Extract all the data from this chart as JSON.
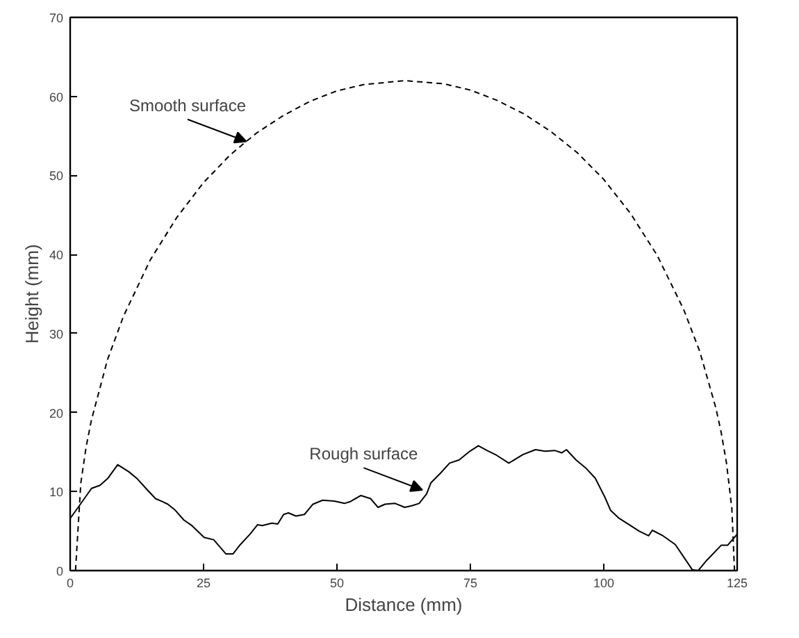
{
  "chart_data": {
    "type": "line",
    "xlabel": "Distance (mm)",
    "ylabel": "Height (mm)",
    "xlim": [
      0,
      125
    ],
    "ylim": [
      0,
      70
    ],
    "xticks": [
      0,
      25,
      50,
      75,
      100,
      125
    ],
    "yticks": [
      0,
      10,
      20,
      30,
      40,
      50,
      60,
      70
    ],
    "marker": "none",
    "series": [
      {
        "color": "#000000",
        "line_style": "dashed",
        "x": [
          1,
          2,
          3,
          4,
          7,
          10,
          15,
          20,
          25,
          30,
          33,
          35,
          40,
          45,
          50,
          55,
          62.75,
          70,
          75,
          80,
          85,
          90,
          95,
          100,
          105,
          110,
          115,
          118,
          121,
          122,
          123,
          124,
          124.5
        ],
        "values": [
          0,
          11.1,
          15.7,
          19.1,
          26.7,
          32.2,
          39.3,
          44.7,
          49.1,
          52.6,
          54.3,
          55.4,
          57.6,
          59.4,
          60.7,
          61.5,
          62,
          61.6,
          60.8,
          59.5,
          57.8,
          55.6,
          52.9,
          49.5,
          45.2,
          39.9,
          33.0,
          27.7,
          20.6,
          17.5,
          13.6,
          7.9,
          0
        ]
      },
      {
        "color": "#000000",
        "line_style": "solid",
        "x": [
          0,
          1.5,
          4,
          5.6,
          7.1,
          8.9,
          11,
          12.6,
          14.2,
          16,
          17.4,
          18.3,
          19.6,
          21.3,
          22.8,
          25.1,
          26.9,
          29.2,
          30.5,
          31.9,
          33.7,
          35.1,
          36,
          37.8,
          38.9,
          40,
          40.9,
          42.3,
          43.9,
          45.5,
          47.3,
          49.5,
          51.4,
          52.4,
          54.5,
          56.3,
          57.7,
          59,
          60.9,
          62.7,
          64,
          65.4,
          66.8,
          67.6,
          69.5,
          71.1,
          72.9,
          74.9,
          76.5,
          78.1,
          79.9,
          82.2,
          84.9,
          87.2,
          89,
          90.8,
          92.1,
          93,
          94.8,
          96.6,
          98.4,
          100.2,
          101.3,
          102.9,
          104.8,
          106.6,
          108.4,
          109.1,
          111.1,
          113.4,
          114.8,
          116.6,
          117.7,
          119.3,
          122,
          123.2,
          125
        ],
        "values": [
          6.6,
          8,
          10.4,
          10.8,
          11.7,
          13.4,
          12.5,
          11.6,
          10.4,
          9.1,
          8.7,
          8.4,
          7.7,
          6.4,
          5.7,
          4.2,
          3.9,
          2.1,
          2.1,
          3.3,
          4.6,
          5.8,
          5.7,
          6.0,
          5.9,
          7.1,
          7.3,
          6.9,
          7.1,
          8.4,
          8.9,
          8.8,
          8.5,
          8.7,
          9.5,
          9.1,
          8.0,
          8.4,
          8.5,
          8.0,
          8.2,
          8.5,
          9.7,
          11.1,
          12.4,
          13.6,
          14.0,
          15.1,
          15.8,
          15.2,
          14.6,
          13.6,
          14.7,
          15.3,
          15.1,
          15.2,
          14.9,
          15.3,
          14.0,
          13.0,
          11.7,
          9.3,
          7.6,
          6.6,
          5.8,
          5.0,
          4.4,
          5.1,
          4.4,
          3.3,
          1.9,
          0.1,
          0,
          1.3,
          3.2,
          3.2,
          4.6
        ]
      }
    ],
    "annotations": [
      {
        "text": "Smooth surface",
        "x": 33,
        "y": 54.3
      },
      {
        "text": "Rough surface",
        "x": 66,
        "y": 10.2
      }
    ]
  }
}
